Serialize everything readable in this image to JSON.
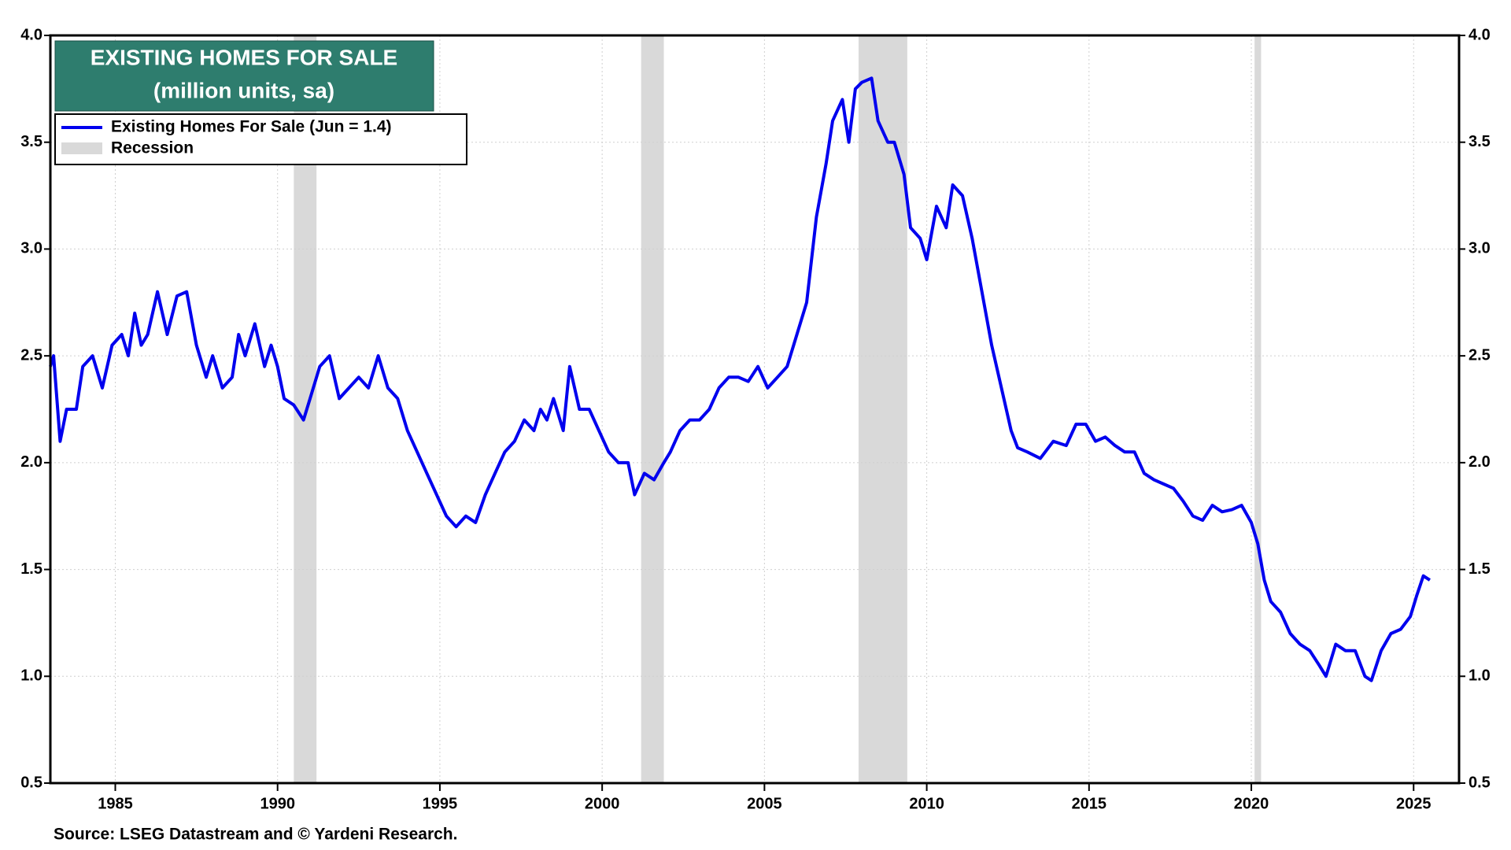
{
  "chart_data": {
    "type": "line",
    "title": "EXISTING HOMES FOR SALE",
    "subtitle": "(million units, sa)",
    "source": "Source: LSEG Datastream and © Yardeni Research.",
    "title_color": "#2e7d6e",
    "xlim": [
      1983,
      2026.4
    ],
    "xticks": [
      1985,
      1990,
      1995,
      2000,
      2005,
      2010,
      2015,
      2020,
      2025
    ],
    "ylim": [
      0.5,
      4.0
    ],
    "yticks": [
      {
        "value": 0.5,
        "label": "0.5"
      },
      {
        "value": 1.0,
        "label": "1.0"
      },
      {
        "value": 1.5,
        "label": "1.5"
      },
      {
        "value": 2.0,
        "label": "2.0"
      },
      {
        "value": 2.5,
        "label": "2.5"
      },
      {
        "value": 3.0,
        "label": "3.0"
      },
      {
        "value": 3.5,
        "label": "3.5"
      },
      {
        "value": 4.0,
        "label": "4.0"
      }
    ],
    "grid": true,
    "legend": "upper left",
    "recession": {
      "name": "Recession",
      "color": "#d9d9d9",
      "periods": [
        [
          1990.5,
          1991.2
        ],
        [
          2001.2,
          2001.9
        ],
        [
          2007.9,
          2009.4
        ],
        [
          2020.1,
          2020.3
        ]
      ]
    },
    "x": [
      1983.0,
      1983.1,
      1983.3,
      1983.5,
      1983.8,
      1984.0,
      1984.3,
      1984.6,
      1984.9,
      1985.2,
      1985.4,
      1985.6,
      1985.8,
      1986.0,
      1986.3,
      1986.6,
      1986.9,
      1987.2,
      1987.5,
      1987.8,
      1988.0,
      1988.3,
      1988.6,
      1988.8,
      1989.0,
      1989.3,
      1989.6,
      1989.8,
      1990.0,
      1990.2,
      1990.5,
      1990.8,
      1991.0,
      1991.3,
      1991.6,
      1991.9,
      1992.2,
      1992.5,
      1992.8,
      1993.1,
      1993.4,
      1993.7,
      1994.0,
      1994.3,
      1994.6,
      1994.9,
      1995.2,
      1995.5,
      1995.8,
      1996.1,
      1996.4,
      1996.7,
      1997.0,
      1997.3,
      1997.6,
      1997.9,
      1998.1,
      1998.3,
      1998.5,
      1998.8,
      1999.0,
      1999.3,
      1999.6,
      1999.9,
      2000.2,
      2000.5,
      2000.8,
      2001.0,
      2001.3,
      2001.6,
      2001.9,
      2002.1,
      2002.4,
      2002.7,
      2003.0,
      2003.3,
      2003.6,
      2003.9,
      2004.2,
      2004.5,
      2004.8,
      2005.1,
      2005.4,
      2005.7,
      2006.0,
      2006.3,
      2006.6,
      2006.9,
      2007.1,
      2007.4,
      2007.6,
      2007.8,
      2008.0,
      2008.3,
      2008.5,
      2008.8,
      2009.0,
      2009.3,
      2009.5,
      2009.8,
      2010.0,
      2010.3,
      2010.6,
      2010.8,
      2011.1,
      2011.4,
      2011.7,
      2012.0,
      2012.3,
      2012.6,
      2012.8,
      2013.1,
      2013.5,
      2013.9,
      2014.3,
      2014.6,
      2014.9,
      2015.2,
      2015.5,
      2015.8,
      2016.1,
      2016.4,
      2016.7,
      2017.0,
      2017.3,
      2017.6,
      2017.9,
      2018.2,
      2018.5,
      2018.8,
      2019.1,
      2019.4,
      2019.7,
      2020.0,
      2020.2,
      2020.4,
      2020.6,
      2020.9,
      2021.2,
      2021.5,
      2021.8,
      2022.1,
      2022.3,
      2022.6,
      2022.9,
      2023.2,
      2023.5,
      2023.7,
      2024.0,
      2024.3,
      2024.6,
      2024.9,
      2025.1,
      2025.3,
      2025.5
    ],
    "series": [
      {
        "name": "Existing Homes For Sale (Jun = 1.4)",
        "color": "#0000ee",
        "values": [
          2.45,
          2.5,
          2.1,
          2.25,
          2.25,
          2.45,
          2.5,
          2.35,
          2.55,
          2.6,
          2.5,
          2.7,
          2.55,
          2.6,
          2.8,
          2.6,
          2.78,
          2.8,
          2.55,
          2.4,
          2.5,
          2.35,
          2.4,
          2.6,
          2.5,
          2.65,
          2.45,
          2.55,
          2.45,
          2.3,
          2.27,
          2.2,
          2.3,
          2.45,
          2.5,
          2.3,
          2.35,
          2.4,
          2.35,
          2.5,
          2.35,
          2.3,
          2.15,
          2.05,
          1.95,
          1.85,
          1.75,
          1.7,
          1.75,
          1.72,
          1.85,
          1.95,
          2.05,
          2.1,
          2.2,
          2.15,
          2.25,
          2.2,
          2.3,
          2.15,
          2.45,
          2.25,
          2.25,
          2.15,
          2.05,
          2.0,
          2.0,
          1.85,
          1.95,
          1.92,
          2.0,
          2.05,
          2.15,
          2.2,
          2.2,
          2.25,
          2.35,
          2.4,
          2.4,
          2.38,
          2.45,
          2.35,
          2.4,
          2.45,
          2.6,
          2.75,
          3.15,
          3.4,
          3.6,
          3.7,
          3.5,
          3.75,
          3.78,
          3.8,
          3.6,
          3.5,
          3.5,
          3.35,
          3.1,
          3.05,
          2.95,
          3.2,
          3.1,
          3.3,
          3.25,
          3.05,
          2.8,
          2.55,
          2.35,
          2.15,
          2.07,
          2.05,
          2.02,
          2.1,
          2.08,
          2.18,
          2.18,
          2.1,
          2.12,
          2.08,
          2.05,
          2.05,
          1.95,
          1.92,
          1.9,
          1.88,
          1.82,
          1.75,
          1.73,
          1.8,
          1.77,
          1.78,
          1.8,
          1.72,
          1.62,
          1.45,
          1.35,
          1.3,
          1.2,
          1.15,
          1.12,
          1.05,
          1.0,
          1.15,
          1.12,
          1.12,
          1.0,
          0.98,
          1.12,
          1.2,
          1.22,
          1.28,
          1.38,
          1.47,
          1.45
        ]
      }
    ]
  }
}
